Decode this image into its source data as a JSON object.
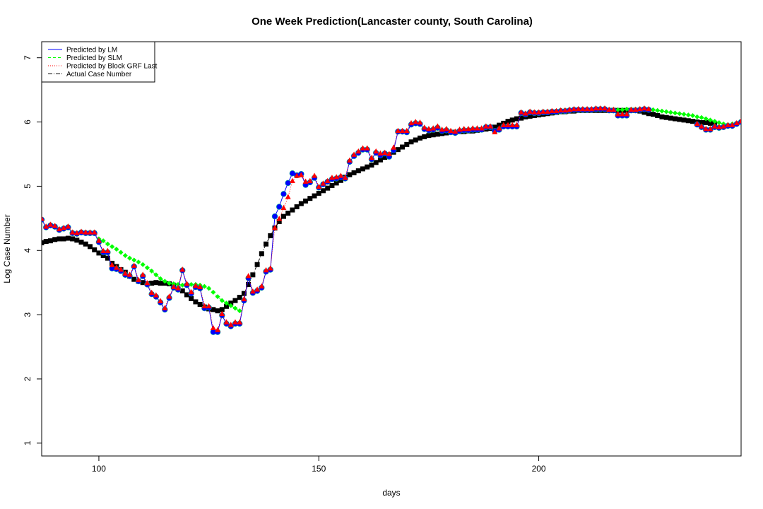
{
  "chart_data": {
    "type": "scatter",
    "title": "One Week Prediction(Lancaster county, South Carolina)",
    "xlabel": "days",
    "ylabel": "Log Case Number",
    "xlim": [
      87,
      246
    ],
    "ylim": [
      0.8,
      7.25
    ],
    "x_ticks": [
      100,
      150,
      200
    ],
    "y_ticks": [
      1,
      2,
      3,
      4,
      5,
      6,
      7
    ],
    "legend": {
      "position": "top-left",
      "entries": [
        {
          "label": "Predicted by LM",
          "color": "#0000ff",
          "line": "solid"
        },
        {
          "label": "Predicted by SLM",
          "color": "#00ff00",
          "line": "dashed"
        },
        {
          "label": "Predicted by Block GRF Last",
          "color": "#ff0000",
          "line": "dotted"
        },
        {
          "label": "Actual Case Number",
          "color": "#000000",
          "line": "dotdash"
        }
      ]
    },
    "series": [
      {
        "name": "Actual Case Number",
        "color": "#000000",
        "marker": "square",
        "x": [
          87,
          88,
          89,
          90,
          91,
          92,
          93,
          94,
          95,
          96,
          97,
          98,
          99,
          100,
          101,
          102,
          103,
          104,
          105,
          106,
          107,
          108,
          109,
          110,
          111,
          112,
          113,
          114,
          115,
          116,
          117,
          118,
          119,
          120,
          121,
          122,
          123,
          124,
          125,
          126,
          127,
          128,
          129,
          130,
          131,
          132,
          133,
          134,
          135,
          136,
          137,
          138,
          139,
          140,
          141,
          142,
          143,
          144,
          145,
          146,
          147,
          148,
          149,
          150,
          151,
          152,
          153,
          154,
          155,
          156,
          157,
          158,
          159,
          160,
          161,
          162,
          163,
          164,
          165,
          166,
          167,
          168,
          169,
          170,
          171,
          172,
          173,
          174,
          175,
          176,
          177,
          178,
          179,
          180,
          181,
          182,
          183,
          184,
          185,
          186,
          187,
          188,
          189,
          190,
          191,
          192,
          193,
          194,
          195,
          196,
          197,
          198,
          199,
          200,
          201,
          202,
          203,
          204,
          205,
          206,
          207,
          208,
          209,
          210,
          211,
          212,
          213,
          214,
          215,
          216,
          217,
          218,
          219,
          220,
          221,
          222,
          223,
          224,
          225,
          226,
          227,
          228,
          229,
          230,
          231,
          232,
          233,
          234,
          235,
          236,
          237,
          238,
          239,
          240
        ],
        "y": [
          4.12,
          4.14,
          4.15,
          4.17,
          4.18,
          4.18,
          4.19,
          4.18,
          4.16,
          4.13,
          4.1,
          4.06,
          4.01,
          3.96,
          3.92,
          3.88,
          3.8,
          3.75,
          3.7,
          3.66,
          3.6,
          3.55,
          3.52,
          3.5,
          3.48,
          3.49,
          3.5,
          3.49,
          3.49,
          3.48,
          3.46,
          3.4,
          3.37,
          3.31,
          3.25,
          3.2,
          3.16,
          3.12,
          3.09,
          3.08,
          3.06,
          3.08,
          3.13,
          3.18,
          3.22,
          3.27,
          3.33,
          3.47,
          3.62,
          3.78,
          3.95,
          4.1,
          4.23,
          4.35,
          4.45,
          4.53,
          4.58,
          4.63,
          4.68,
          4.73,
          4.77,
          4.81,
          4.85,
          4.89,
          4.93,
          4.97,
          5.01,
          5.05,
          5.09,
          5.14,
          5.18,
          5.21,
          5.24,
          5.27,
          5.3,
          5.33,
          5.37,
          5.41,
          5.45,
          5.49,
          5.53,
          5.57,
          5.61,
          5.65,
          5.69,
          5.72,
          5.75,
          5.77,
          5.79,
          5.8,
          5.81,
          5.82,
          5.83,
          5.84,
          5.84,
          5.85,
          5.85,
          5.86,
          5.86,
          5.87,
          5.88,
          5.89,
          5.9,
          5.92,
          5.95,
          5.98,
          6.01,
          6.03,
          6.05,
          6.06,
          6.08,
          6.09,
          6.1,
          6.11,
          6.12,
          6.13,
          6.14,
          6.15,
          6.16,
          6.16,
          6.17,
          6.17,
          6.18,
          6.18,
          6.18,
          6.18,
          6.18,
          6.18,
          6.18,
          6.18,
          6.18,
          6.18,
          6.18,
          6.18,
          6.18,
          6.18,
          6.17,
          6.15,
          6.13,
          6.12,
          6.1,
          6.08,
          6.07,
          6.06,
          6.05,
          6.04,
          6.03,
          6.02,
          6.01,
          6.0,
          5.99,
          5.99,
          5.98,
          5.98
        ]
      },
      {
        "name": "Predicted by SLM",
        "color": "#00ff00",
        "marker": "diamond",
        "x": [
          100,
          101,
          102,
          103,
          104,
          105,
          106,
          107,
          108,
          109,
          110,
          111,
          112,
          113,
          114,
          115,
          116,
          117,
          118,
          119,
          120,
          121,
          122,
          123,
          124,
          125,
          126,
          127,
          128,
          129,
          130,
          131,
          132,
          209,
          210,
          211,
          212,
          213,
          214,
          215,
          216,
          217,
          218,
          219,
          220,
          221,
          222,
          223,
          224,
          225,
          226,
          227,
          228,
          229,
          230,
          231,
          232,
          233,
          234,
          235,
          236,
          237,
          238,
          239,
          240,
          241,
          242,
          243,
          244,
          245,
          246
        ],
        "y": [
          4.18,
          4.15,
          4.1,
          4.06,
          4.02,
          3.97,
          3.92,
          3.88,
          3.85,
          3.82,
          3.78,
          3.73,
          3.68,
          3.62,
          3.56,
          3.52,
          3.49,
          3.48,
          3.47,
          3.46,
          3.46,
          3.47,
          3.47,
          3.46,
          3.44,
          3.41,
          3.35,
          3.28,
          3.22,
          3.18,
          3.14,
          3.1,
          3.06,
          6.18,
          6.18,
          6.18,
          6.19,
          6.19,
          6.19,
          6.19,
          6.19,
          6.19,
          6.19,
          6.19,
          6.2,
          6.2,
          6.2,
          6.2,
          6.2,
          6.2,
          6.19,
          6.18,
          6.17,
          6.16,
          6.15,
          6.14,
          6.13,
          6.12,
          6.11,
          6.1,
          6.08,
          6.07,
          6.05,
          6.03,
          6.01,
          5.99,
          5.97,
          5.96,
          5.97,
          5.98,
          6.0
        ]
      },
      {
        "name": "Predicted by LM",
        "color": "#0000ff",
        "marker": "circle",
        "x": [
          87,
          88,
          89,
          90,
          91,
          92,
          93,
          94,
          95,
          96,
          97,
          98,
          99,
          100,
          101,
          102,
          103,
          104,
          105,
          106,
          107,
          108,
          109,
          110,
          111,
          112,
          113,
          114,
          115,
          116,
          117,
          118,
          119,
          120,
          121,
          122,
          123,
          124,
          125,
          126,
          127,
          128,
          129,
          130,
          131,
          132,
          133,
          134,
          135,
          136,
          137,
          138,
          139,
          140,
          141,
          142,
          143,
          144,
          145,
          146,
          147,
          148,
          149,
          150,
          151,
          152,
          153,
          154,
          155,
          156,
          157,
          158,
          159,
          160,
          161,
          162,
          163,
          164,
          165,
          166,
          167,
          168,
          169,
          170,
          171,
          172,
          173,
          174,
          175,
          176,
          177,
          178,
          179,
          180,
          181,
          182,
          183,
          184,
          185,
          186,
          187,
          188,
          189,
          190,
          191,
          192,
          193,
          194,
          195,
          196,
          197,
          198,
          199,
          200,
          201,
          202,
          203,
          204,
          205,
          206,
          207,
          208,
          209,
          210,
          211,
          212,
          213,
          214,
          215,
          216,
          217,
          218,
          219,
          220,
          221,
          222,
          223,
          224,
          225,
          236,
          237,
          238,
          239,
          240,
          241,
          242,
          243,
          244,
          245,
          246
        ],
        "y": [
          4.48,
          4.36,
          4.39,
          4.37,
          4.32,
          4.34,
          4.36,
          4.27,
          4.26,
          4.28,
          4.27,
          4.27,
          4.27,
          4.13,
          3.97,
          3.97,
          3.72,
          3.71,
          3.68,
          3.62,
          3.6,
          3.75,
          3.52,
          3.6,
          3.47,
          3.32,
          3.28,
          3.19,
          3.08,
          3.26,
          3.42,
          3.39,
          3.69,
          3.46,
          3.33,
          3.43,
          3.41,
          3.1,
          3.11,
          2.73,
          2.73,
          2.99,
          2.86,
          2.82,
          2.86,
          2.86,
          3.22,
          3.57,
          3.34,
          3.37,
          3.42,
          3.67,
          3.7,
          4.53,
          4.68,
          4.88,
          5.05,
          5.2,
          5.17,
          5.19,
          5.02,
          5.06,
          5.13,
          4.98,
          5.03,
          5.07,
          5.11,
          5.12,
          5.14,
          5.12,
          5.38,
          5.47,
          5.52,
          5.57,
          5.57,
          5.42,
          5.52,
          5.48,
          5.51,
          5.46,
          5.56,
          5.85,
          5.85,
          5.84,
          5.96,
          5.98,
          5.97,
          5.89,
          5.87,
          5.88,
          5.91,
          5.86,
          5.87,
          5.84,
          5.83,
          5.86,
          5.87,
          5.87,
          5.88,
          5.88,
          5.88,
          5.92,
          5.92,
          5.86,
          5.88,
          5.93,
          5.93,
          5.93,
          5.93,
          6.14,
          6.12,
          6.15,
          6.14,
          6.14,
          6.15,
          6.15,
          6.16,
          6.16,
          6.17,
          6.17,
          6.18,
          6.19,
          6.19,
          6.19,
          6.19,
          6.19,
          6.2,
          6.2,
          6.2,
          6.18,
          6.18,
          6.1,
          6.1,
          6.1,
          6.18,
          6.18,
          6.19,
          6.2,
          6.19,
          5.96,
          5.92,
          5.88,
          5.88,
          5.92,
          5.91,
          5.92,
          5.94,
          5.94,
          5.97,
          6.0
        ]
      },
      {
        "name": "Predicted by Block GRF Last",
        "color": "#ff0000",
        "marker": "triangle",
        "x": [
          87,
          88,
          89,
          90,
          91,
          92,
          93,
          94,
          95,
          96,
          97,
          98,
          99,
          100,
          101,
          102,
          103,
          104,
          105,
          106,
          107,
          108,
          109,
          110,
          111,
          112,
          113,
          114,
          115,
          116,
          117,
          118,
          119,
          120,
          121,
          122,
          123,
          124,
          125,
          126,
          127,
          128,
          129,
          130,
          131,
          132,
          133,
          134,
          135,
          136,
          137,
          138,
          139,
          140,
          141,
          142,
          143,
          144,
          145,
          146,
          147,
          148,
          149,
          150,
          151,
          152,
          153,
          154,
          155,
          156,
          157,
          158,
          159,
          160,
          161,
          162,
          163,
          164,
          165,
          166,
          167,
          168,
          169,
          170,
          171,
          172,
          173,
          174,
          175,
          176,
          177,
          178,
          179,
          180,
          181,
          182,
          183,
          184,
          185,
          186,
          187,
          188,
          189,
          190,
          191,
          192,
          193,
          194,
          195,
          196,
          197,
          198,
          199,
          200,
          201,
          202,
          203,
          204,
          205,
          206,
          207,
          208,
          209,
          210,
          211,
          212,
          213,
          214,
          215,
          216,
          217,
          218,
          219,
          220,
          221,
          222,
          223,
          224,
          225,
          236,
          237,
          238,
          239,
          240,
          241,
          242,
          243,
          244,
          245,
          246
        ],
        "y": [
          4.49,
          4.37,
          4.4,
          4.38,
          4.33,
          4.35,
          4.37,
          4.28,
          4.27,
          4.29,
          4.28,
          4.28,
          4.28,
          4.15,
          3.99,
          3.99,
          3.77,
          3.73,
          3.7,
          3.64,
          3.62,
          3.76,
          3.54,
          3.62,
          3.49,
          3.34,
          3.3,
          3.21,
          3.1,
          3.28,
          3.43,
          3.41,
          3.7,
          3.48,
          3.35,
          3.45,
          3.43,
          3.13,
          3.13,
          2.79,
          2.76,
          3.01,
          2.88,
          2.84,
          2.88,
          2.88,
          3.24,
          3.6,
          3.36,
          3.39,
          3.44,
          3.69,
          3.72,
          4.35,
          4.49,
          4.66,
          4.83,
          5.08,
          5.16,
          5.17,
          5.07,
          5.08,
          5.16,
          4.99,
          5.04,
          5.08,
          5.13,
          5.14,
          5.16,
          5.13,
          5.4,
          5.49,
          5.54,
          5.59,
          5.59,
          5.44,
          5.54,
          5.51,
          5.52,
          5.5,
          5.6,
          5.86,
          5.86,
          5.86,
          5.98,
          6.0,
          5.99,
          5.91,
          5.89,
          5.9,
          5.93,
          5.88,
          5.89,
          5.86,
          5.85,
          5.88,
          5.89,
          5.89,
          5.9,
          5.9,
          5.9,
          5.93,
          5.93,
          5.84,
          5.9,
          5.95,
          5.95,
          5.95,
          5.95,
          6.15,
          6.13,
          6.16,
          6.15,
          6.15,
          6.16,
          6.16,
          6.17,
          6.17,
          6.18,
          6.18,
          6.19,
          6.2,
          6.2,
          6.2,
          6.2,
          6.2,
          6.21,
          6.21,
          6.21,
          6.19,
          6.19,
          6.12,
          6.12,
          6.12,
          6.19,
          6.19,
          6.2,
          6.21,
          6.2,
          5.97,
          5.93,
          5.89,
          5.89,
          5.93,
          5.92,
          5.93,
          5.95,
          5.95,
          5.98,
          6.01
        ]
      }
    ]
  }
}
